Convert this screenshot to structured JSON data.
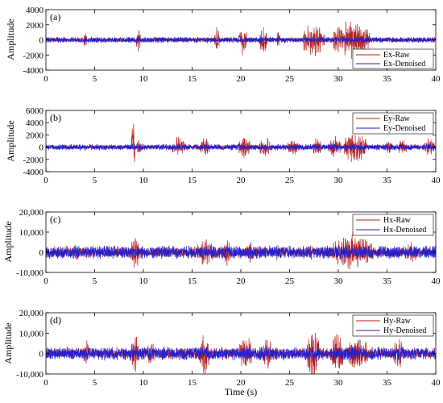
{
  "chart_data": [
    {
      "type": "line",
      "panel_label": "(a)",
      "ylabel": "Amplitude",
      "xlim": [
        0,
        40
      ],
      "ylim": [
        -4000,
        4000
      ],
      "xticks": [
        0,
        5,
        10,
        15,
        20,
        25,
        30,
        35,
        40
      ],
      "yticks": [
        -4000,
        -2000,
        0,
        2000,
        4000
      ],
      "ytick_labels": [
        "-4000",
        "-2000",
        "0",
        "2000",
        "4000"
      ],
      "legend": {
        "location": "bottom-right"
      },
      "series": [
        {
          "name": "Ex-Raw",
          "color": "#b22222",
          "base_amplitude": 300,
          "bursts": [
            [
              3.9,
              4.2,
              1800
            ],
            [
              9.3,
              9.7,
              1600
            ],
            [
              17.3,
              17.8,
              1700
            ],
            [
              19.8,
              20.6,
              2000
            ],
            [
              21.9,
              22.7,
              2000
            ],
            [
              23.7,
              24.0,
              1500
            ],
            [
              26.4,
              28.6,
              2400
            ],
            [
              29.5,
              33.2,
              2600
            ]
          ]
        },
        {
          "name": "Ex-Denoised",
          "color": "#1f1fd6",
          "base_amplitude": 350
        }
      ]
    },
    {
      "type": "line",
      "panel_label": "(b)",
      "ylabel": "Amplitude",
      "xlim": [
        0,
        40
      ],
      "ylim": [
        -4000,
        6000
      ],
      "xticks": [
        0,
        5,
        10,
        15,
        20,
        25,
        30,
        35,
        40
      ],
      "yticks": [
        -4000,
        -2000,
        0,
        2000,
        4000,
        6000
      ],
      "ytick_labels": [
        "-4000",
        "-2000",
        "0",
        "2000",
        "4000",
        "6000"
      ],
      "legend": {
        "location": "top-right"
      },
      "series": [
        {
          "name": "Ey-Raw",
          "color": "#b22222",
          "base_amplitude": 300,
          "bursts": [
            [
              8.8,
              9.1,
              4800
            ],
            [
              9.3,
              9.9,
              1300
            ],
            [
              13.0,
              14.3,
              1800
            ],
            [
              15.8,
              16.8,
              1600
            ],
            [
              19.7,
              20.9,
              1800
            ],
            [
              21.9,
              23.2,
              1800
            ],
            [
              24.8,
              25.9,
              1400
            ],
            [
              27.4,
              28.3,
              1800
            ],
            [
              29.0,
              30.2,
              2000
            ],
            [
              30.6,
              32.9,
              2800
            ],
            [
              34.8,
              35.5,
              1400
            ],
            [
              36.2,
              37.0,
              1500
            ],
            [
              38.8,
              40.0,
              1500
            ]
          ]
        },
        {
          "name": "Ey-Denoised",
          "color": "#1f1fd6",
          "base_amplitude": 450
        }
      ]
    },
    {
      "type": "line",
      "panel_label": "(c)",
      "ylabel": "Amplitude",
      "xlim": [
        0,
        40
      ],
      "ylim": [
        -10000,
        20000
      ],
      "xticks": [
        0,
        5,
        10,
        15,
        20,
        25,
        30,
        35,
        40
      ],
      "yticks": [
        -10000,
        0,
        10000,
        20000
      ],
      "ytick_labels": [
        "-10,000",
        "0",
        "10,000",
        "20,000"
      ],
      "legend": {
        "location": "top-right"
      },
      "series": [
        {
          "name": "Hx-Raw",
          "color": "#b22222",
          "base_amplitude": 2500,
          "bursts": [
            [
              2.8,
              3.5,
              4500
            ],
            [
              8.7,
              9.6,
              8500
            ],
            [
              15.4,
              17.3,
              7000
            ],
            [
              18.2,
              19.0,
              6500
            ],
            [
              20.5,
              21.5,
              5000
            ],
            [
              23.3,
              24.3,
              4500
            ],
            [
              26.8,
              27.5,
              4000
            ],
            [
              29.3,
              33.5,
              9000
            ],
            [
              36.8,
              38.3,
              5000
            ]
          ]
        },
        {
          "name": "Hx-Denoised",
          "color": "#1f1fd6",
          "base_amplitude": 3000
        }
      ]
    },
    {
      "type": "line",
      "panel_label": "(d)",
      "ylabel": "Amplitude",
      "xlabel": "Time (s)",
      "xlim": [
        0,
        40
      ],
      "ylim": [
        -10000,
        20000
      ],
      "xticks": [
        0,
        5,
        10,
        15,
        20,
        25,
        30,
        35,
        40
      ],
      "yticks": [
        -10000,
        0,
        10000,
        20000
      ],
      "ytick_labels": [
        "-10,000",
        "0",
        "10,000",
        "20,000"
      ],
      "legend": {
        "location": "top-right"
      },
      "series": [
        {
          "name": "Hy-Raw",
          "color": "#b22222",
          "base_amplitude": 2500,
          "bursts": [
            [
              3.9,
              4.4,
              7500
            ],
            [
              8.7,
              9.6,
              9000
            ],
            [
              10.4,
              11.2,
              6000
            ],
            [
              15.8,
              16.7,
              11000
            ],
            [
              19.8,
              21.2,
              9500
            ],
            [
              22.2,
              23.3,
              7500
            ],
            [
              26.8,
              28.0,
              14000
            ],
            [
              29.2,
              30.5,
              10500
            ],
            [
              31.1,
              33.0,
              9500
            ],
            [
              35.7,
              36.7,
              8500
            ]
          ]
        },
        {
          "name": "Hy-Denoised",
          "color": "#1f1fd6",
          "base_amplitude": 3000
        }
      ]
    }
  ]
}
